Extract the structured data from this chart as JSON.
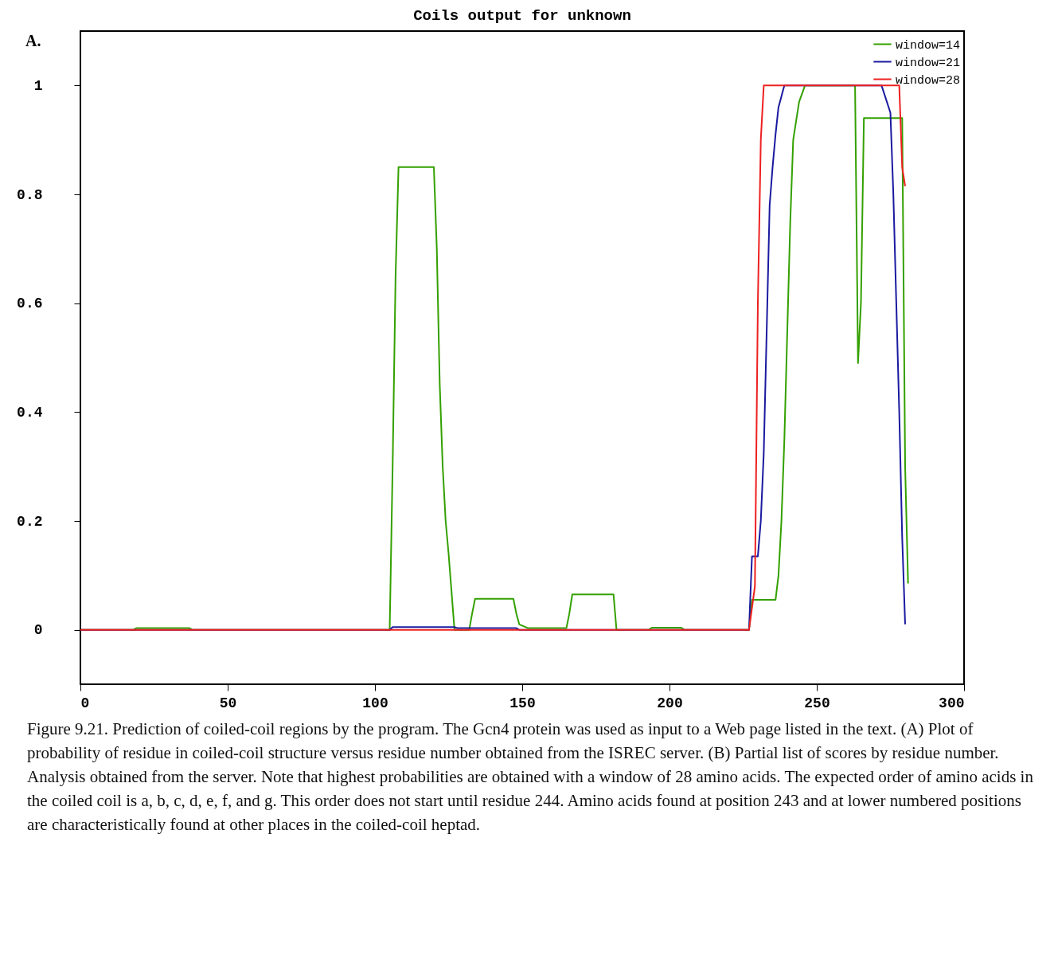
{
  "chart_data": {
    "type": "line",
    "title": "Coils output for unknown",
    "annotations": [
      "A.",
      "Figure 9.21. Prediction of coiled-coil regions by the program. The Gcn4 protein was used as input to a Web page listed in the text. (A) Plot of probability of residue in coiled-coil structure versus residue number obtained from the ISREC server. (B) Partial list of scores by residue number. Analysis obtained from the server. Note that highest probabilities are obtained with a window of 28 amino acids. The expected order of amino acids in the coiled coil is a, b, c, d, e, f, and g. This order does not start until residue 244. Amino acids found at position 243 and at lower numbered positions are characteristically found at other places in the coiled-coil heptad."
    ],
    "xlim": [
      0,
      300
    ],
    "xticks": [
      0,
      50,
      100,
      150,
      200,
      250,
      300
    ],
    "ylim": [
      -0.1,
      1.1
    ],
    "yticks": [
      0,
      0.2,
      0.4,
      0.6,
      0.8,
      1
    ],
    "grid": false,
    "legend": "top right",
    "marker": "none",
    "line_style": "solid",
    "series": [
      {
        "name": "window=14",
        "color": "#33a000",
        "x": [
          0,
          18,
          19,
          37,
          38,
          105,
          106,
          107,
          108,
          120,
          121,
          122,
          123,
          124,
          125,
          126,
          127,
          132,
          133,
          134,
          147,
          148,
          149,
          152,
          165,
          166,
          167,
          181,
          182,
          193,
          194,
          204,
          205,
          227,
          228,
          236,
          237,
          238,
          239,
          240,
          241,
          242,
          244,
          246,
          263,
          264,
          265,
          266,
          279,
          280,
          281
        ],
        "values": [
          0,
          0,
          0.003,
          0.003,
          0,
          0,
          0.3,
          0.65,
          0.85,
          0.85,
          0.7,
          0.45,
          0.3,
          0.2,
          0.14,
          0.07,
          0,
          0,
          0.03,
          0.057,
          0.057,
          0.03,
          0.01,
          0.003,
          0.003,
          0.03,
          0.065,
          0.065,
          0,
          0,
          0.004,
          0.004,
          0,
          0,
          0.055,
          0.055,
          0.1,
          0.2,
          0.35,
          0.55,
          0.75,
          0.9,
          0.97,
          1,
          1,
          0.49,
          0.6,
          0.94,
          0.94,
          0.3,
          0.085
        ]
      },
      {
        "name": "window=21",
        "color": "#1a1aa0",
        "x": [
          0,
          105,
          106,
          127,
          128,
          148,
          149,
          227,
          228,
          230,
          231,
          232,
          233,
          234,
          235,
          236,
          237,
          239,
          272,
          275,
          276,
          277,
          278,
          279,
          280
        ],
        "values": [
          0,
          0,
          0.005,
          0.005,
          0.003,
          0.003,
          0,
          0,
          0.135,
          0.135,
          0.2,
          0.325,
          0.55,
          0.78,
          0.85,
          0.91,
          0.96,
          1,
          1,
          0.95,
          0.8,
          0.6,
          0.4,
          0.17,
          0.01
        ]
      },
      {
        "name": "window=28",
        "color": "#ee2020",
        "x": [
          0,
          227,
          228,
          229,
          230,
          231,
          232,
          278,
          279,
          280
        ],
        "values": [
          0,
          0,
          0.04,
          0.08,
          0.6,
          0.9,
          1,
          1,
          0.85,
          0.815
        ]
      }
    ]
  }
}
